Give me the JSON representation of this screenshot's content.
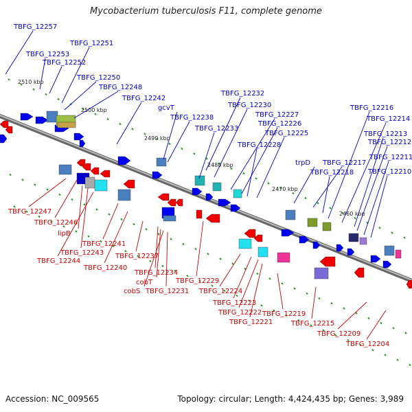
{
  "title": "Mycobacterium tuberculosis F11, complete genome",
  "footer": {
    "accession": "Accession: NC_009565",
    "summary": "Topology: circular; Length: 4,424,435 bp; Genes: 3,989"
  },
  "colors": {
    "top_label": "#0000cc",
    "bottom_label": "#cc0000",
    "forward_gene": "#0000ee",
    "reverse_gene": "#ee0000",
    "backbone": "#888888",
    "tick": "#1f9a1f"
  },
  "scale_labels": [
    "2510 kbp",
    "2500 kbp",
    "2490 kbp",
    "2480 kbp",
    "2470 kbp",
    "2460 kbp"
  ],
  "top_labels": [
    "TBFG_12257",
    "TBFG_12253",
    "TBFG_12252",
    "TBFG_12251",
    "TBFG_12250",
    "TBFG_12248",
    "TBFG_12242",
    "gcvT",
    "TBFG_12238",
    "TBFG_12233",
    "TBFG_12232",
    "TBFG_12230",
    "TBFG_12227",
    "TBFG_12226",
    "TBFG_12228",
    "TBFG_12225",
    "trpD",
    "TBFG_12217",
    "TBFG_12218",
    "TBFG_12216",
    "TBFG_12214",
    "TBFG_12213",
    "TBFG_12212",
    "TBFG_12211",
    "TBFG_12210"
  ],
  "bottom_labels": [
    "TBFG_12247",
    "TBFG_12246",
    "lipB",
    "TBFG_12241",
    "TBFG_12243",
    "TBFG_12244",
    "TBFG_12240",
    "TBFG_12237",
    "TBFG_12234",
    "cobT",
    "cobS",
    "TBFG_12231",
    "TBFG_12229",
    "TBFG_12224",
    "TBFG_12223",
    "TBFG_12222",
    "TBFG_12221",
    "TBFG_12219",
    "TBFG_12215",
    "TBFG_12209",
    "TBFG_12204"
  ]
}
